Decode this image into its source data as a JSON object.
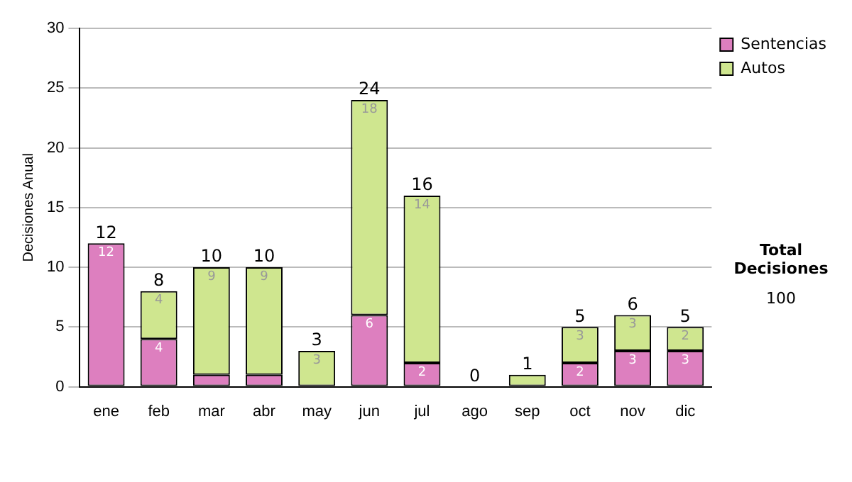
{
  "chart_data": {
    "type": "bar",
    "stacked": true,
    "ylabel": "Decisiones Anual",
    "categories": [
      "ene",
      "feb",
      "mar",
      "abr",
      "may",
      "jun",
      "jul",
      "ago",
      "sep",
      "oct",
      "nov",
      "dic"
    ],
    "series": [
      {
        "name": "Sentencias",
        "color": "#dd7fbf",
        "values": [
          12,
          4,
          1,
          1,
          0,
          6,
          2,
          0,
          0,
          2,
          3,
          3
        ],
        "value_labels": [
          "12",
          "4",
          null,
          null,
          null,
          "6",
          "2",
          null,
          null,
          "2",
          "3",
          "3"
        ]
      },
      {
        "name": "Autos",
        "color": "#cfe68f",
        "values": [
          0,
          4,
          9,
          9,
          3,
          18,
          14,
          0,
          1,
          3,
          3,
          2
        ],
        "value_labels": [
          null,
          "4",
          "9",
          "9",
          "3",
          "18",
          "14",
          null,
          null,
          "3",
          "3",
          "2"
        ]
      }
    ],
    "totals": [
      "12",
      "8",
      "10",
      "10",
      "3",
      "24",
      "16",
      "0",
      "1",
      "5",
      "6",
      "5"
    ],
    "ylim": [
      0,
      30
    ],
    "yticks": [
      0,
      5,
      10,
      15,
      20,
      25,
      30
    ],
    "grid": "y",
    "legend": "right",
    "annotations": [
      "Total Decisiones",
      "100"
    ]
  }
}
